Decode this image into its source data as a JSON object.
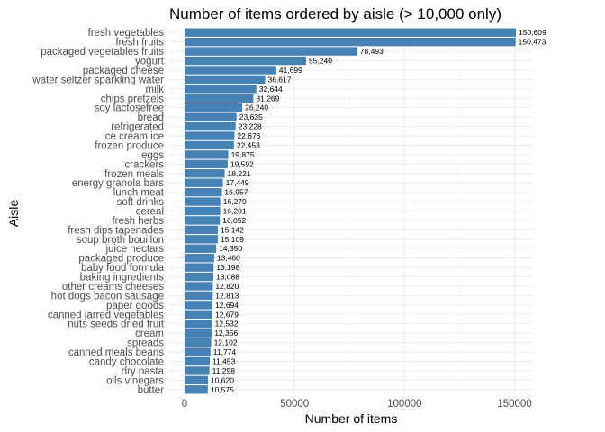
{
  "chart_data": {
    "type": "bar",
    "orientation": "horizontal",
    "title": "Number of items ordered by aisle (> 10,000 only)",
    "xlabel": "Number of items",
    "ylabel": "Aisle",
    "xlim": [
      0,
      160000
    ],
    "xticks": [
      0,
      50000,
      100000,
      150000
    ],
    "grid": true,
    "bar_color": "#4682b4",
    "categories": [
      "fresh vegetables",
      "fresh fruits",
      "packaged vegetables fruits",
      "yogurt",
      "packaged cheese",
      "water seltzer sparkling water",
      "milk",
      "chips pretzels",
      "soy lactosefree",
      "bread",
      "refrigerated",
      "ice cream ice",
      "frozen produce",
      "eggs",
      "crackers",
      "frozen meals",
      "energy granola bars",
      "lunch meat",
      "soft drinks",
      "cereal",
      "fresh herbs",
      "fresh dips tapenades",
      "soup broth bouillon",
      "juice nectars",
      "packaged produce",
      "baby food formula",
      "baking ingredients",
      "other creams cheeses",
      "hot dogs bacon sausage",
      "paper goods",
      "canned jarred vegetables",
      "nuts seeds dried fruit",
      "cream",
      "spreads",
      "canned meals beans",
      "candy chocolate",
      "dry pasta",
      "oils vinegars",
      "butter"
    ],
    "values": [
      150609,
      150473,
      78493,
      55240,
      41699,
      36617,
      32644,
      31269,
      26240,
      23635,
      23228,
      22676,
      22453,
      19875,
      19592,
      18221,
      17449,
      16957,
      16279,
      16201,
      16052,
      15142,
      15109,
      14350,
      13460,
      13198,
      13088,
      12820,
      12813,
      12694,
      12679,
      12532,
      12356,
      12102,
      11774,
      11453,
      11298,
      10620,
      10575
    ],
    "value_labels": [
      "150,609",
      "150,473",
      "78,493",
      "55,240",
      "41,699",
      "36,617",
      "32,644",
      "31,269",
      "26,240",
      "23,635",
      "23,228",
      "22,676",
      "22,453",
      "19,875",
      "19,592",
      "18,221",
      "17,449",
      "16,957",
      "16,279",
      "16,201",
      "16,052",
      "15,142",
      "15,109",
      "14,350",
      "13,460",
      "13,198",
      "13,088",
      "12,820",
      "12,813",
      "12,694",
      "12,679",
      "12,532",
      "12,356",
      "12,102",
      "11,774",
      "11,453",
      "11,298",
      "10,620",
      "10,575"
    ],
    "tick_labels": [
      "0",
      "50000",
      "100000",
      "150000"
    ]
  }
}
